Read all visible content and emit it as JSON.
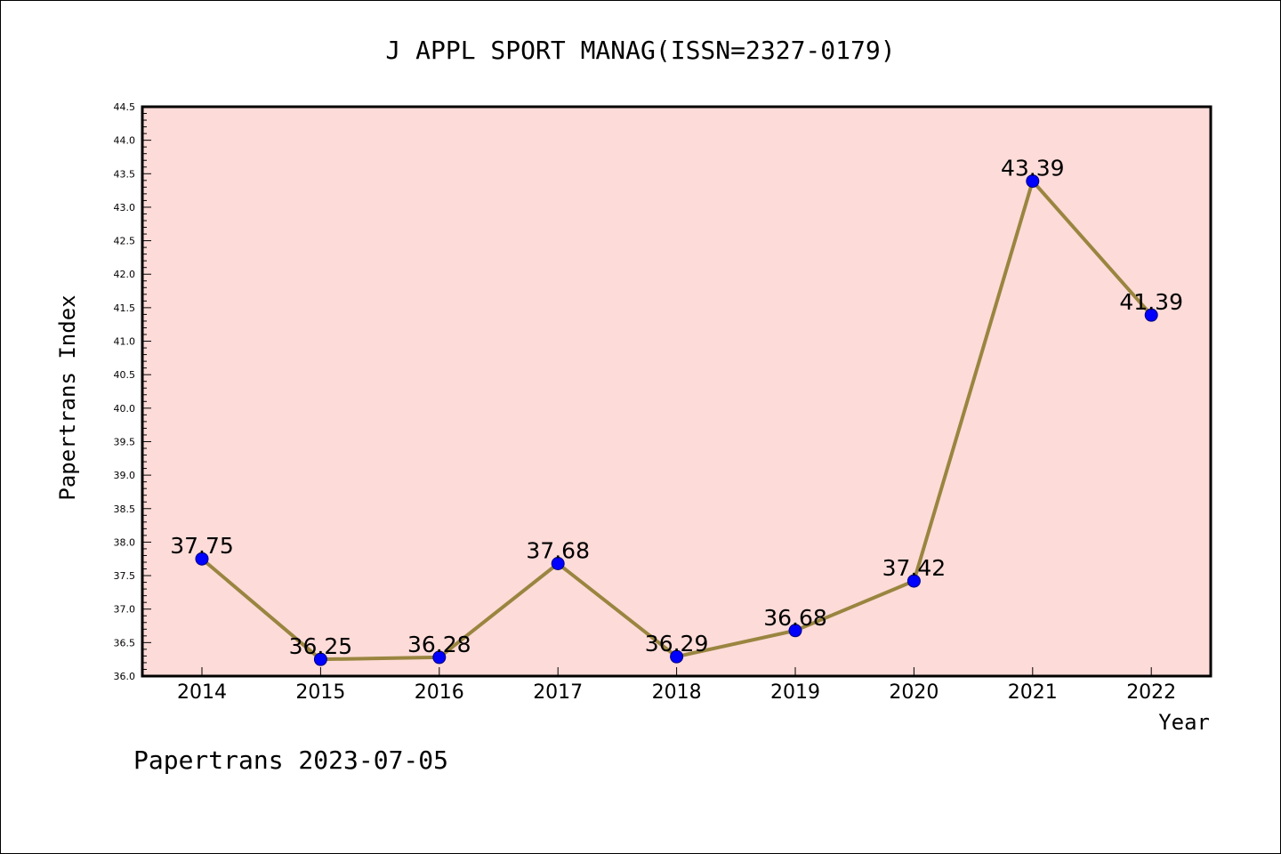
{
  "chart_data": {
    "type": "line",
    "title": "J APPL SPORT MANAG(ISSN=2327-0179)",
    "xlabel": "Year",
    "ylabel": "Papertrans Index",
    "categories": [
      "2014",
      "2015",
      "2016",
      "2017",
      "2018",
      "2019",
      "2020",
      "2021",
      "2022"
    ],
    "series": [
      {
        "values": [
          37.75,
          36.25,
          36.28,
          37.68,
          36.29,
          36.68,
          37.42,
          43.39,
          41.39
        ],
        "labels": [
          "37.75",
          "36.25",
          "36.28",
          "37.68",
          "36.29",
          "36.68",
          "37.42",
          "43.39",
          "41.39"
        ]
      }
    ],
    "ylim": [
      36.0,
      44.5
    ],
    "yticks": [
      "36.0",
      "36.5",
      "37.0",
      "37.5",
      "38.0",
      "38.5",
      "39.0",
      "39.5",
      "40.0",
      "40.5",
      "41.0",
      "41.5",
      "42.0",
      "42.5",
      "43.0",
      "43.5",
      "44.0",
      "44.5"
    ],
    "grid": false,
    "colors": {
      "plot_background": "#fddbd8",
      "line": "#9a8540",
      "marker": "#0000ff"
    }
  },
  "footer": "Papertrans 2023-07-05"
}
